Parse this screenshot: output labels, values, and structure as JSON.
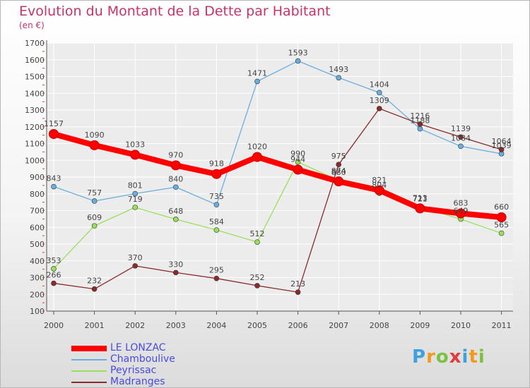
{
  "title": "Evolution du Montant de la Dette par Habitant",
  "subtitle": "(en €)",
  "logo": "Proxiti",
  "colors": {
    "title": "#c5336b",
    "axis": "#555555",
    "grid": "#ffffff",
    "legend_text": "#4a4adf"
  },
  "chart_data": {
    "type": "line",
    "x": [
      "2000",
      "2001",
      "2002",
      "2003",
      "2004",
      "2005",
      "2006",
      "2007",
      "2008",
      "2009",
      "2010",
      "2011"
    ],
    "ylim": [
      100,
      1700
    ],
    "yticks": [
      "100",
      "200",
      "300",
      "400",
      "500",
      "600",
      "700",
      "800",
      "900",
      "1000",
      "1100",
      "1200",
      "1300",
      "1400",
      "1500",
      "1600",
      "1700"
    ],
    "grid": true,
    "legend_position": "bottom-left",
    "series": [
      {
        "name": "LE LONZAC",
        "color": "#ff0000",
        "values": [
          1157,
          1090,
          1033,
          970,
          918,
          1020,
          944,
          874,
          821,
          713,
          683,
          660
        ],
        "labels": [
          "1157",
          "1090",
          "1033",
          "970",
          "918",
          "1020",
          "944",
          "874",
          "821",
          "713",
          "683",
          "660"
        ]
      },
      {
        "name": "Chamboulive",
        "color": "#6aaee0",
        "values": [
          843,
          757,
          801,
          840,
          735,
          1471,
          1593,
          1493,
          1404,
          1188,
          1084,
          1039
        ],
        "labels": [
          "843",
          "757",
          "801",
          "840",
          "735",
          "1471",
          "1593",
          "1493",
          "1404",
          "1188",
          "1084",
          "1039"
        ]
      },
      {
        "name": "Peyrissac",
        "color": "#99e05a",
        "values": [
          353,
          609,
          719,
          648,
          584,
          512,
          990,
          880,
          804,
          721,
          649,
          565
        ],
        "labels": [
          "353",
          "609",
          "719",
          "648",
          "584",
          "512",
          "990",
          "880",
          "804",
          "721",
          "649",
          "565"
        ]
      },
      {
        "name": "Madranges",
        "color": "#8a2a2a",
        "values": [
          266,
          232,
          370,
          330,
          295,
          252,
          213,
          975,
          1309,
          1216,
          1139,
          1064
        ],
        "labels": [
          "266",
          "232",
          "370",
          "330",
          "295",
          "252",
          "213",
          "975",
          "1309",
          "1216",
          "1139",
          "1064"
        ]
      }
    ]
  }
}
